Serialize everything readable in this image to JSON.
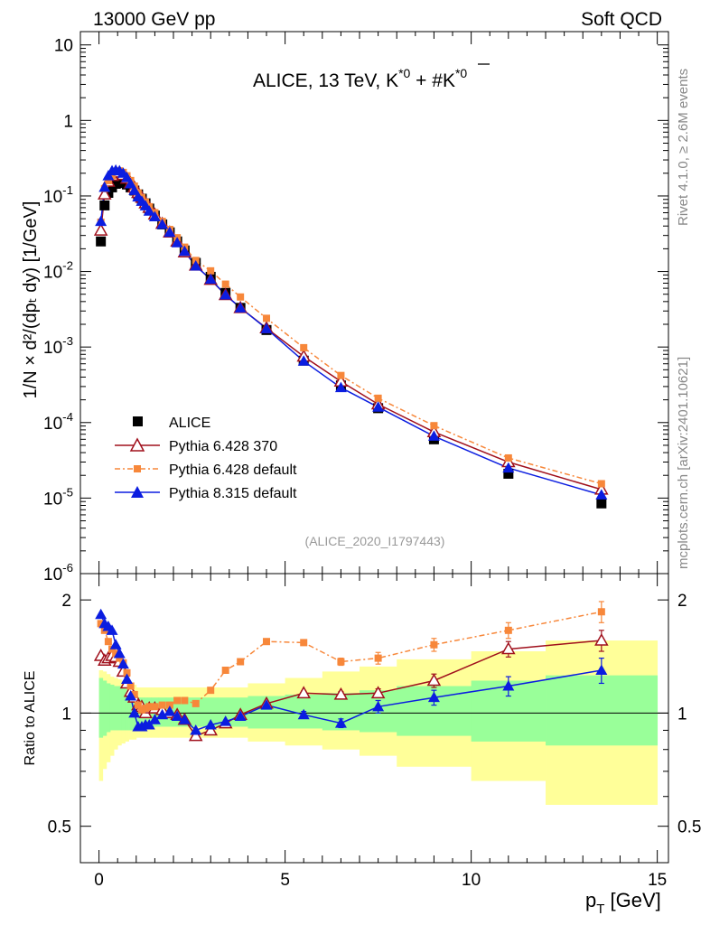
{
  "header": {
    "left": "13000 GeV pp",
    "right": "Soft QCD"
  },
  "side": {
    "top": "Rivet 4.1.0, ≥ 2.6M events",
    "bottom": "mcplots.cern.ch [arXiv:2401.10621]"
  },
  "chart_data": [
    {
      "type": "scatter",
      "panel": "main",
      "title_main": "ALICE, 13 TeV, K",
      "title_sup1": "*0",
      "title_mid": " + #",
      "title_kbar": "K",
      "title_sup2": "*0",
      "ylabel": "1/N × d²/(dpₜ dy) [1/GeV]",
      "analysis_id": "(ALICE_2020_I1797443)",
      "xlim": [
        -0.5,
        15.3
      ],
      "ylim": [
        1e-06,
        15
      ],
      "yscale": "log",
      "ytick_labels": [
        {
          "base": "10",
          "exp": "-6",
          "value": 1e-06
        },
        {
          "base": "10",
          "exp": "-5",
          "value": 1e-05
        },
        {
          "base": "10",
          "exp": "-4",
          "value": 0.0001
        },
        {
          "base": "10",
          "exp": "-3",
          "value": 0.001
        },
        {
          "base": "10",
          "exp": "-2",
          "value": 0.01
        },
        {
          "base": "10",
          "exp": "-1",
          "value": 0.1
        },
        {
          "base": "1",
          "exp": "",
          "value": 1
        },
        {
          "base": "10",
          "exp": "",
          "value": 10
        }
      ],
      "series": [
        {
          "name": "ALICE",
          "color": "#000000",
          "marker": "square",
          "x": [
            0.05,
            0.15,
            0.25,
            0.35,
            0.45,
            0.55,
            0.65,
            0.75,
            0.85,
            0.95,
            1.05,
            1.15,
            1.25,
            1.35,
            1.5,
            1.7,
            1.9,
            2.1,
            2.3,
            2.6,
            3.0,
            3.4,
            3.8,
            4.5,
            5.5,
            6.5,
            7.5,
            9.0,
            11.0,
            13.5
          ],
          "y": [
            0.025,
            0.075,
            0.11,
            0.13,
            0.145,
            0.15,
            0.148,
            0.142,
            0.13,
            0.118,
            0.105,
            0.092,
            0.08,
            0.068,
            0.055,
            0.042,
            0.033,
            0.025,
            0.019,
            0.013,
            0.0085,
            0.0052,
            0.0033,
            0.00168,
            0.00066,
            0.00031,
            0.000155,
            6e-05,
            2.1e-05,
            8.5e-06
          ]
        },
        {
          "name": "Pythia 6.428 370",
          "color": "#a0101c",
          "marker": "triangle-open",
          "x": [
            0.05,
            0.15,
            0.25,
            0.35,
            0.45,
            0.55,
            0.65,
            0.75,
            0.85,
            0.95,
            1.05,
            1.15,
            1.25,
            1.35,
            1.5,
            1.7,
            1.9,
            2.1,
            2.3,
            2.6,
            3.0,
            3.4,
            3.8,
            4.5,
            5.5,
            6.5,
            7.5,
            9.0,
            11.0,
            13.5
          ],
          "y": [
            0.035,
            0.105,
            0.155,
            0.185,
            0.205,
            0.205,
            0.19,
            0.17,
            0.148,
            0.13,
            0.11,
            0.095,
            0.08,
            0.07,
            0.057,
            0.043,
            0.033,
            0.025,
            0.018,
            0.012,
            0.0078,
            0.0049,
            0.0033,
            0.00178,
            0.00075,
            0.00035,
            0.000175,
            7.5e-05,
            3e-05,
            1.3e-05
          ]
        },
        {
          "name": "Pythia 6.428 default",
          "color": "#f7873a",
          "marker": "square-small",
          "dashed": true,
          "x": [
            0.05,
            0.15,
            0.25,
            0.35,
            0.45,
            0.55,
            0.65,
            0.75,
            0.85,
            0.95,
            1.05,
            1.15,
            1.25,
            1.35,
            1.5,
            1.7,
            1.9,
            2.1,
            2.3,
            2.6,
            3.0,
            3.4,
            3.8,
            4.5,
            5.5,
            6.5,
            7.5,
            9.0,
            11.0,
            13.5
          ],
          "y": [
            0.045,
            0.125,
            0.16,
            0.185,
            0.21,
            0.215,
            0.205,
            0.185,
            0.16,
            0.135,
            0.11,
            0.095,
            0.083,
            0.072,
            0.06,
            0.046,
            0.036,
            0.028,
            0.021,
            0.014,
            0.0102,
            0.0068,
            0.0046,
            0.0024,
            0.00098,
            0.00042,
            0.00021,
            9.1e-05,
            3.4e-05,
            1.55e-05
          ]
        },
        {
          "name": "Pythia 8.315 default",
          "color": "#0b1de0",
          "marker": "triangle-filled",
          "x": [
            0.05,
            0.15,
            0.25,
            0.35,
            0.45,
            0.55,
            0.65,
            0.75,
            0.85,
            0.95,
            1.05,
            1.15,
            1.25,
            1.35,
            1.5,
            1.7,
            1.9,
            2.1,
            2.3,
            2.6,
            3.0,
            3.4,
            3.8,
            4.5,
            5.5,
            6.5,
            7.5,
            9.0,
            11.0,
            13.5
          ],
          "y": [
            0.046,
            0.13,
            0.185,
            0.215,
            0.22,
            0.215,
            0.2,
            0.175,
            0.145,
            0.118,
            0.097,
            0.085,
            0.074,
            0.063,
            0.053,
            0.042,
            0.033,
            0.024,
            0.0185,
            0.0118,
            0.0079,
            0.0049,
            0.0033,
            0.00175,
            0.00065,
            0.00029,
            0.00016,
            6.6e-05,
            2.5e-05,
            1.1e-05
          ]
        }
      ]
    },
    {
      "type": "scatter",
      "panel": "ratio",
      "ylabel": "Ratio to ALICE",
      "xlabel_main": "p",
      "xlabel_sub": "T",
      "xlabel_unit": " [GeV]",
      "xlim": [
        -0.5,
        15.3
      ],
      "ylim": [
        0.4,
        2.35
      ],
      "yscale": "log",
      "xtick_labels": [
        "0",
        "5",
        "10",
        "15"
      ],
      "xtick_values": [
        0,
        5,
        10,
        15
      ],
      "ytick_labels": [
        "0.5",
        "1",
        "2"
      ],
      "ytick_values": [
        0.5,
        1,
        2
      ],
      "band_edges": [
        0,
        0.1,
        0.2,
        0.3,
        0.4,
        0.5,
        0.6,
        0.7,
        0.8,
        0.9,
        1.0,
        1.1,
        1.2,
        1.3,
        1.4,
        1.6,
        1.8,
        2.0,
        2.2,
        2.4,
        2.8,
        3.2,
        3.6,
        4.0,
        5.0,
        6.0,
        7.0,
        8.0,
        10.0,
        12.0,
        15.0
      ],
      "band_stat_low": [
        0.86,
        0.87,
        0.89,
        0.9,
        0.9,
        0.9,
        0.9,
        0.9,
        0.9,
        0.9,
        0.92,
        0.92,
        0.92,
        0.92,
        0.92,
        0.92,
        0.92,
        0.92,
        0.92,
        0.92,
        0.92,
        0.92,
        0.92,
        0.91,
        0.91,
        0.9,
        0.89,
        0.87,
        0.84,
        0.82
      ],
      "band_stat_high": [
        1.24,
        1.22,
        1.2,
        1.19,
        1.18,
        1.18,
        1.17,
        1.16,
        1.14,
        1.12,
        1.1,
        1.1,
        1.1,
        1.1,
        1.1,
        1.1,
        1.1,
        1.1,
        1.1,
        1.1,
        1.1,
        1.1,
        1.1,
        1.11,
        1.12,
        1.13,
        1.15,
        1.18,
        1.22,
        1.26
      ],
      "band_tot_low": [
        0.66,
        0.71,
        0.74,
        0.77,
        0.8,
        0.82,
        0.83,
        0.84,
        0.85,
        0.85,
        0.86,
        0.86,
        0.86,
        0.86,
        0.86,
        0.86,
        0.86,
        0.86,
        0.86,
        0.86,
        0.86,
        0.86,
        0.86,
        0.84,
        0.82,
        0.8,
        0.77,
        0.72,
        0.66,
        0.57
      ],
      "band_tot_high": [
        1.3,
        1.29,
        1.27,
        1.25,
        1.24,
        1.23,
        1.22,
        1.21,
        1.2,
        1.19,
        1.17,
        1.17,
        1.17,
        1.17,
        1.17,
        1.17,
        1.17,
        1.17,
        1.17,
        1.17,
        1.17,
        1.17,
        1.17,
        1.2,
        1.24,
        1.29,
        1.33,
        1.39,
        1.46,
        1.56
      ],
      "series": [
        {
          "name": "Pythia 6.428 370",
          "color": "#a0101c",
          "marker": "triangle-open",
          "x": [
            0.05,
            0.15,
            0.25,
            0.35,
            0.45,
            0.55,
            0.65,
            0.75,
            0.85,
            0.95,
            1.05,
            1.15,
            1.25,
            1.35,
            1.5,
            1.7,
            1.9,
            2.1,
            2.3,
            2.6,
            3.0,
            3.4,
            3.8,
            4.5,
            5.5,
            6.5,
            7.5,
            9.0,
            11.0,
            13.5
          ],
          "y": [
            1.42,
            1.38,
            1.4,
            1.42,
            1.41,
            1.37,
            1.29,
            1.2,
            1.14,
            1.1,
            1.05,
            1.04,
            1.0,
            1.03,
            1.03,
            1.02,
            1.0,
            0.99,
            0.96,
            0.87,
            0.9,
            0.94,
            0.99,
            1.06,
            1.13,
            1.12,
            1.13,
            1.22,
            1.48,
            1.56
          ],
          "err": [
            0,
            0,
            0,
            0,
            0,
            0,
            0,
            0,
            0,
            0,
            0,
            0,
            0,
            0,
            0,
            0,
            0,
            0,
            0,
            0,
            0,
            0,
            0.01,
            0.01,
            0.015,
            0.02,
            0.03,
            0.05,
            0.07,
            0.1
          ]
        },
        {
          "name": "Pythia 6.428 default",
          "color": "#f7873a",
          "marker": "square-small",
          "dashed": true,
          "x": [
            0.05,
            0.15,
            0.25,
            0.35,
            0.45,
            0.55,
            0.65,
            0.75,
            0.85,
            0.95,
            1.05,
            1.15,
            1.25,
            1.35,
            1.5,
            1.7,
            1.9,
            2.1,
            2.3,
            2.6,
            3.0,
            3.4,
            3.8,
            4.5,
            5.5,
            6.5,
            7.5,
            9.0,
            11.0,
            13.5
          ],
          "y": [
            1.73,
            1.66,
            1.55,
            1.48,
            1.44,
            1.4,
            1.36,
            1.28,
            1.18,
            1.12,
            1.05,
            1.02,
            1.03,
            1.04,
            1.04,
            1.05,
            1.05,
            1.08,
            1.08,
            1.06,
            1.15,
            1.3,
            1.37,
            1.55,
            1.54,
            1.37,
            1.4,
            1.52,
            1.66,
            1.86
          ],
          "err": [
            0,
            0,
            0,
            0,
            0,
            0,
            0,
            0,
            0,
            0,
            0,
            0,
            0,
            0,
            0,
            0,
            0,
            0,
            0,
            0,
            0,
            0,
            0.01,
            0.015,
            0.02,
            0.03,
            0.05,
            0.06,
            0.08,
            0.12
          ]
        },
        {
          "name": "Pythia 8.315 default",
          "color": "#0b1de0",
          "marker": "triangle-filled",
          "x": [
            0.05,
            0.15,
            0.25,
            0.35,
            0.45,
            0.55,
            0.65,
            0.75,
            0.85,
            0.95,
            1.05,
            1.15,
            1.25,
            1.35,
            1.5,
            1.7,
            1.9,
            2.1,
            2.3,
            2.6,
            3.0,
            3.4,
            3.8,
            4.5,
            5.5,
            6.5,
            7.5,
            9.0,
            11.0,
            13.5
          ],
          "y": [
            1.83,
            1.73,
            1.7,
            1.66,
            1.52,
            1.44,
            1.35,
            1.23,
            1.11,
            1.0,
            0.92,
            0.92,
            0.93,
            0.93,
            0.96,
            0.99,
            1.01,
            0.98,
            0.96,
            0.9,
            0.93,
            0.95,
            0.98,
            1.05,
            0.99,
            0.94,
            1.04,
            1.1,
            1.18,
            1.3
          ],
          "err": [
            0,
            0,
            0,
            0,
            0,
            0,
            0,
            0,
            0,
            0,
            0,
            0,
            0,
            0,
            0,
            0,
            0,
            0,
            0,
            0,
            0,
            0,
            0.01,
            0.015,
            0.02,
            0.025,
            0.04,
            0.05,
            0.07,
            0.1
          ]
        }
      ]
    }
  ],
  "colors": {
    "band_stat": "#99ff99",
    "band_total": "#ffff99"
  }
}
